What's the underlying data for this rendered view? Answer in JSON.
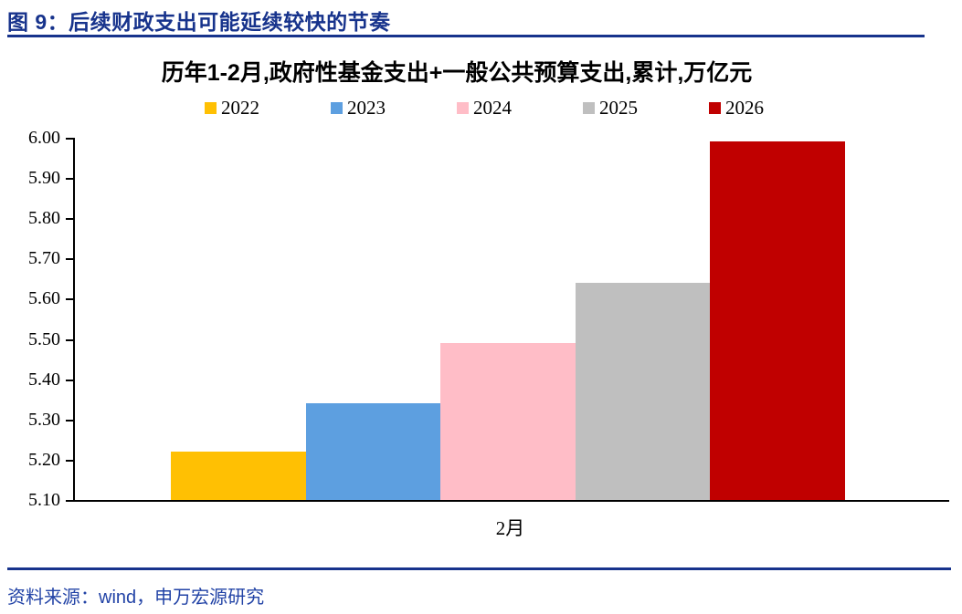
{
  "header": {
    "title": "图 9：后续财政支出可能延续较快的节奏"
  },
  "chart_data": {
    "type": "bar",
    "title": "历年1-2月,政府性基金支出+一般公共预算支出,累计,万亿元",
    "categories": [
      "2022",
      "2023",
      "2024",
      "2025",
      "2026"
    ],
    "values": [
      5.22,
      5.34,
      5.49,
      5.64,
      5.99
    ],
    "colors": [
      "#ffc003",
      "#5d9fe0",
      "#ffbdc7",
      "#bfbfbf",
      "#c00000"
    ],
    "xlabel": "2月",
    "ylabel": "",
    "ylim": [
      5.1,
      6.0
    ],
    "ytick_step": 0.1,
    "yticks": [
      "6.00",
      "5.90",
      "5.80",
      "5.70",
      "5.60",
      "5.50",
      "5.40",
      "5.30",
      "5.20",
      "5.10"
    ],
    "legend_position": "top",
    "grid": false,
    "axis_color": "#000000"
  },
  "footer": {
    "source": "资料来源：wind，申万宏源研究"
  }
}
